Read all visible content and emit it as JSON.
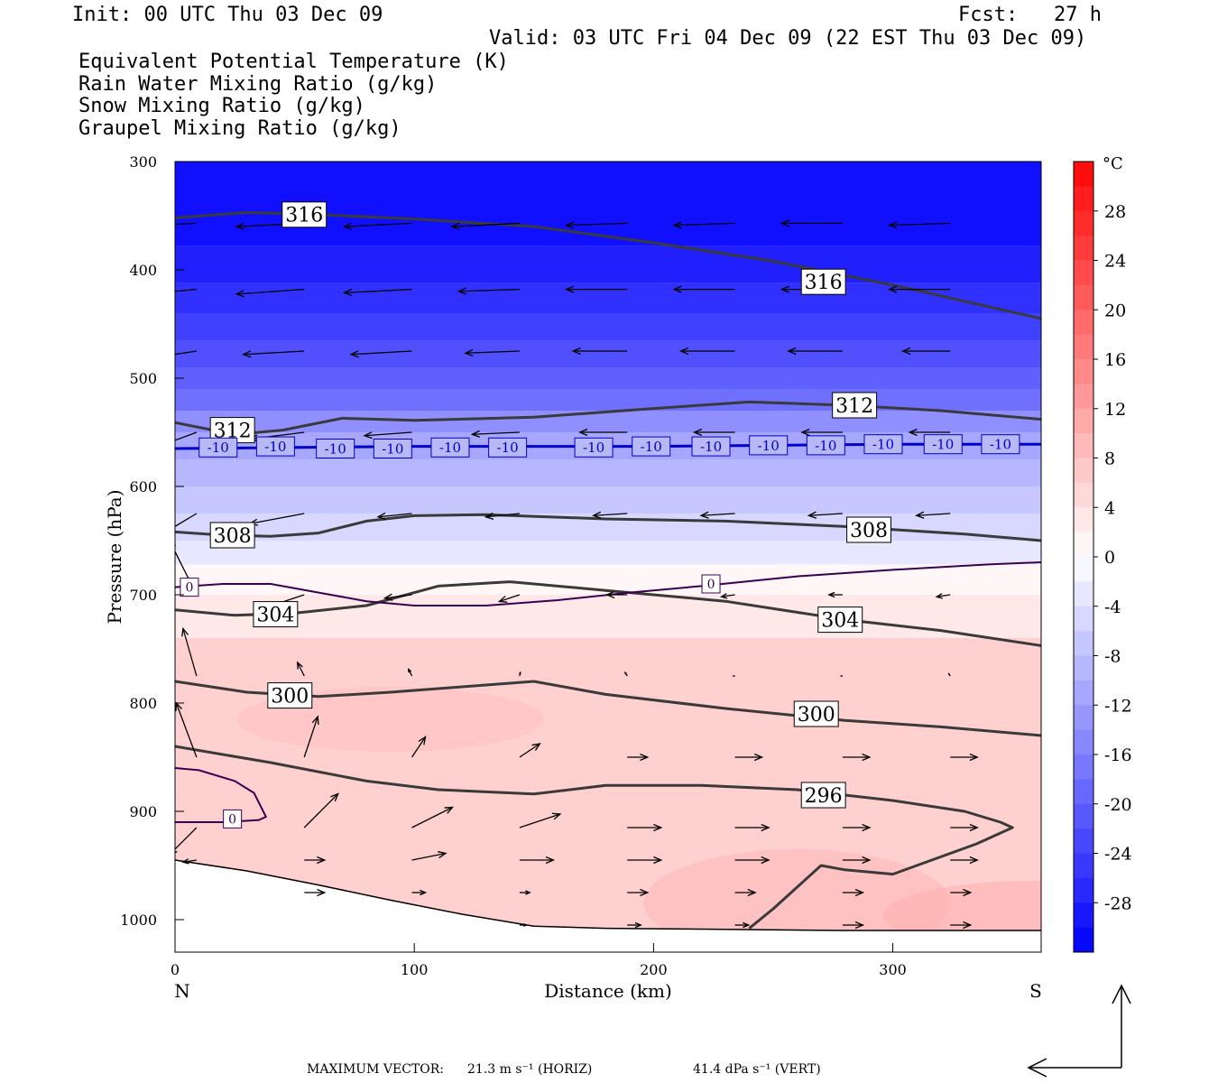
{
  "header": {
    "init": "Init: 00 UTC Thu 03 Dec 09",
    "fcst": "Fcst:   27 h",
    "valid": "Valid: 03 UTC Fri 04 Dec 09 (22 EST Thu 03 Dec 09)"
  },
  "legend": [
    {
      "label": "Equivalent Potential Temperature (K)",
      "color": "#555555"
    },
    {
      "label": "Rain Water Mixing Ratio (g/kg)",
      "color": "#007000"
    },
    {
      "label": "Snow Mixing Ratio (g/kg)",
      "color": "#f0905a"
    },
    {
      "label": "Graupel Mixing Ratio (g/kg)",
      "color": "#ee70ee"
    }
  ],
  "footer": {
    "max_vector_label": "MAXIMUM VECTOR:",
    "horiz": "21.3 m s⁻¹ (HORIZ)",
    "vert": "41.4 dPa s⁻¹ (VERT)"
  },
  "chart_data": {
    "type": "heatmap",
    "xlabel": "Distance (km)",
    "ylabel": "Pressure (hPa)",
    "xlim": [
      0,
      362
    ],
    "ylim": [
      300,
      1030
    ],
    "x_ticks": [
      0,
      100,
      200,
      300
    ],
    "y_ticks": [
      300,
      400,
      500,
      600,
      700,
      800,
      900,
      1000
    ],
    "end_labels": {
      "left": "N",
      "right": "S"
    },
    "colorbar": {
      "unit": "°C",
      "ticks": [
        28,
        24,
        20,
        16,
        12,
        8,
        4,
        0,
        -4,
        -8,
        -12,
        -16,
        -20,
        -24,
        -28
      ],
      "min": -32,
      "max": 32
    },
    "temperature_bands": [
      {
        "p": [
          300,
          378
        ],
        "t": -30
      },
      {
        "p": [
          378,
          412
        ],
        "t": -28
      },
      {
        "p": [
          412,
          440
        ],
        "t": -26
      },
      {
        "p": [
          440,
          465
        ],
        "t": -24
      },
      {
        "p": [
          465,
          490
        ],
        "t": -22
      },
      {
        "p": [
          490,
          510
        ],
        "t": -20
      },
      {
        "p": [
          510,
          530
        ],
        "t": -18
      },
      {
        "p": [
          530,
          550
        ],
        "t": -14
      },
      {
        "p": [
          550,
          575
        ],
        "t": -11
      },
      {
        "p": [
          575,
          600
        ],
        "t": -9
      },
      {
        "p": [
          600,
          625
        ],
        "t": -7
      },
      {
        "p": [
          625,
          650
        ],
        "t": -5
      },
      {
        "p": [
          650,
          672
        ],
        "t": -3
      },
      {
        "p": [
          672,
          700
        ],
        "t": 1
      },
      {
        "p": [
          700,
          740
        ],
        "t": 3
      },
      {
        "p": [
          740,
          1030
        ],
        "t": 6
      }
    ],
    "theta_e_contours": [
      {
        "level": 316,
        "x": [
          0,
          30,
          60,
          100,
          150,
          200,
          250,
          300,
          362
        ],
        "p": [
          352,
          347,
          349,
          353,
          360,
          375,
          392,
          414,
          445
        ]
      },
      {
        "level": 312,
        "x": [
          0,
          25,
          45,
          70,
          100,
          150,
          200,
          240,
          280,
          320,
          362
        ],
        "p": [
          541,
          552,
          548,
          537,
          539,
          536,
          528,
          522,
          525,
          530,
          538
        ]
      },
      {
        "level": 308,
        "x": [
          0,
          20,
          40,
          60,
          80,
          100,
          130,
          180,
          230,
          280,
          330,
          362
        ],
        "p": [
          642,
          645,
          646,
          643,
          632,
          627,
          626,
          630,
          632,
          637,
          644,
          650
        ]
      },
      {
        "level": 304,
        "x": [
          0,
          25,
          50,
          80,
          110,
          140,
          180,
          230,
          280,
          320,
          362
        ],
        "p": [
          714,
          719,
          717,
          710,
          692,
          688,
          696,
          706,
          723,
          733,
          747
        ]
      },
      {
        "level": 300,
        "x": [
          0,
          30,
          60,
          90,
          120,
          150,
          180,
          230,
          280,
          320,
          362
        ],
        "p": [
          780,
          790,
          794,
          790,
          785,
          780,
          792,
          805,
          816,
          822,
          830
        ]
      },
      {
        "level": 296,
        "x": [
          0,
          40,
          80,
          110,
          130,
          150,
          180,
          220,
          260,
          300,
          330,
          345,
          350,
          335,
          300,
          280,
          270,
          260,
          250,
          240
        ],
        "p": [
          840,
          855,
          872,
          880,
          882,
          884,
          876,
          876,
          880,
          890,
          900,
          910,
          915,
          930,
          958,
          954,
          950,
          970,
          990,
          1008
        ]
      },
      {
        "level": null,
        "x": [
          0,
          30,
          60,
          90,
          120,
          150,
          180,
          230,
          280,
          330,
          362
        ],
        "p": [
          945,
          955,
          968,
          982,
          995,
          1006,
          1008,
          1009,
          1010,
          1010,
          1010
        ]
      }
    ],
    "isotherm_0C": [
      {
        "x": [
          0,
          20,
          40,
          60,
          80,
          100,
          130,
          160,
          190,
          220,
          260,
          300,
          340,
          362
        ],
        "p": [
          693,
          690,
          690,
          698,
          706,
          710,
          710,
          705,
          698,
          692,
          683,
          677,
          672,
          670
        ]
      },
      {
        "x": [
          0,
          10,
          25,
          33,
          38,
          35,
          20,
          5,
          0
        ],
        "p": [
          860,
          862,
          872,
          883,
          905,
          908,
          910,
          910,
          910
        ]
      }
    ],
    "isotherm_minus10C": {
      "x": [
        0,
        100,
        200,
        300,
        362
      ],
      "p": [
        565,
        563,
        563,
        561,
        561
      ]
    },
    "contour_labels": [
      {
        "text": "316",
        "x": 54,
        "p": 349
      },
      {
        "text": "316",
        "x": 271,
        "p": 411
      },
      {
        "text": "312",
        "x": 24,
        "p": 548
      },
      {
        "text": "312",
        "x": 284,
        "p": 525
      },
      {
        "text": "308",
        "x": 24,
        "p": 645
      },
      {
        "text": "308",
        "x": 290,
        "p": 640
      },
      {
        "text": "304",
        "x": 42,
        "p": 718
      },
      {
        "text": "304",
        "x": 278,
        "p": 723
      },
      {
        "text": "300",
        "x": 48,
        "p": 793
      },
      {
        "text": "300",
        "x": 268,
        "p": 810
      },
      {
        "text": "296",
        "x": 271,
        "p": 885
      }
    ],
    "isotherm_labels": [
      {
        "text": "0",
        "x": 6,
        "p": 693
      },
      {
        "text": "0",
        "x": 224,
        "p": 690
      },
      {
        "text": "0",
        "x": 24,
        "p": 907
      },
      {
        "text": "-10",
        "x": 18,
        "p": 564
      },
      {
        "text": "-10",
        "x": 42,
        "p": 563
      },
      {
        "text": "-10",
        "x": 67,
        "p": 565
      },
      {
        "text": "-10",
        "x": 91,
        "p": 565
      },
      {
        "text": "-10",
        "x": 115,
        "p": 564
      },
      {
        "text": "-10",
        "x": 139,
        "p": 564
      },
      {
        "text": "-10",
        "x": 175,
        "p": 564
      },
      {
        "text": "-10",
        "x": 199,
        "p": 563
      },
      {
        "text": "-10",
        "x": 224,
        "p": 563
      },
      {
        "text": "-10",
        "x": 248,
        "p": 562
      },
      {
        "text": "-10",
        "x": 272,
        "p": 562
      },
      {
        "text": "-10",
        "x": 296,
        "p": 561
      },
      {
        "text": "-10",
        "x": 321,
        "p": 561
      },
      {
        "text": "-10",
        "x": 345,
        "p": 561
      }
    ],
    "wind_vectors": {
      "x": [
        9,
        54,
        99,
        144,
        189,
        234,
        279,
        324
      ],
      "rows": [
        {
          "p": 357,
          "u": [
            -11,
            -10,
            -10,
            -10,
            -9,
            -9,
            -9,
            -9
          ],
          "v": [
            0.5,
            0.5,
            0.5,
            0.5,
            0.3,
            0.3,
            0,
            0.3
          ]
        },
        {
          "p": 418,
          "u": [
            -11,
            -10,
            -10,
            -9,
            -9,
            -9,
            -9,
            -9
          ],
          "v": [
            1,
            0.7,
            0.5,
            0.3,
            0,
            0,
            0,
            0
          ]
        },
        {
          "p": 475,
          "u": [
            -10,
            -9,
            -9,
            -8,
            -8,
            -8,
            -8,
            -7
          ],
          "v": [
            1.5,
            0.5,
            0.5,
            0.3,
            0,
            0,
            0,
            0
          ]
        },
        {
          "p": 550,
          "u": [
            -8,
            -8,
            -7,
            -7,
            -7,
            -6,
            -6,
            -6
          ],
          "v": [
            3,
            1,
            0.5,
            0.3,
            0,
            0,
            0,
            0
          ]
        },
        {
          "p": 625,
          "u": [
            -10,
            -8,
            -5,
            -5,
            -5,
            -5,
            -5,
            -5
          ],
          "v": [
            6,
            1.5,
            0.5,
            0.5,
            0.3,
            0.3,
            0.3,
            0.3
          ]
        },
        {
          "p": 700,
          "u": [
            -4,
            -6,
            -4,
            -3,
            -3,
            -2,
            -2,
            -2
          ],
          "v": [
            -8,
            2,
            0.5,
            1,
            0,
            0.3,
            0,
            0.3
          ]
        },
        {
          "p": 775,
          "u": [
            -2,
            -1,
            -0.5,
            0.1,
            -0.3,
            -0.2,
            -0.2,
            -0.2
          ],
          "v": [
            -7,
            -2,
            -1,
            -0.5,
            -0.5,
            0,
            0,
            -0.3
          ]
        },
        {
          "p": 850,
          "u": [
            -3,
            2,
            2,
            3,
            3,
            4,
            4,
            4
          ],
          "v": [
            -8,
            -6,
            -3,
            -2,
            0,
            0,
            0,
            0
          ]
        },
        {
          "p": 915,
          "u": [
            -4,
            5,
            6,
            6,
            5,
            5,
            4,
            4
          ],
          "v": [
            4,
            -5,
            -3,
            -2,
            0,
            0,
            0,
            0
          ]
        },
        {
          "p": 945,
          "u": [
            -2,
            3,
            5,
            5,
            5,
            5,
            4,
            4
          ],
          "v": [
            0.3,
            0,
            -1,
            0,
            0,
            0,
            0,
            0
          ]
        },
        {
          "p": 975,
          "u": [
            null,
            3,
            2,
            1.5,
            3,
            3,
            3,
            3
          ],
          "v": [
            null,
            0,
            0,
            0,
            0,
            0,
            0,
            0
          ]
        },
        {
          "p": 1005,
          "u": [
            null,
            null,
            null,
            1,
            2,
            2,
            3,
            3
          ],
          "v": [
            null,
            null,
            null,
            0,
            0,
            0,
            0,
            0
          ]
        }
      ]
    }
  }
}
